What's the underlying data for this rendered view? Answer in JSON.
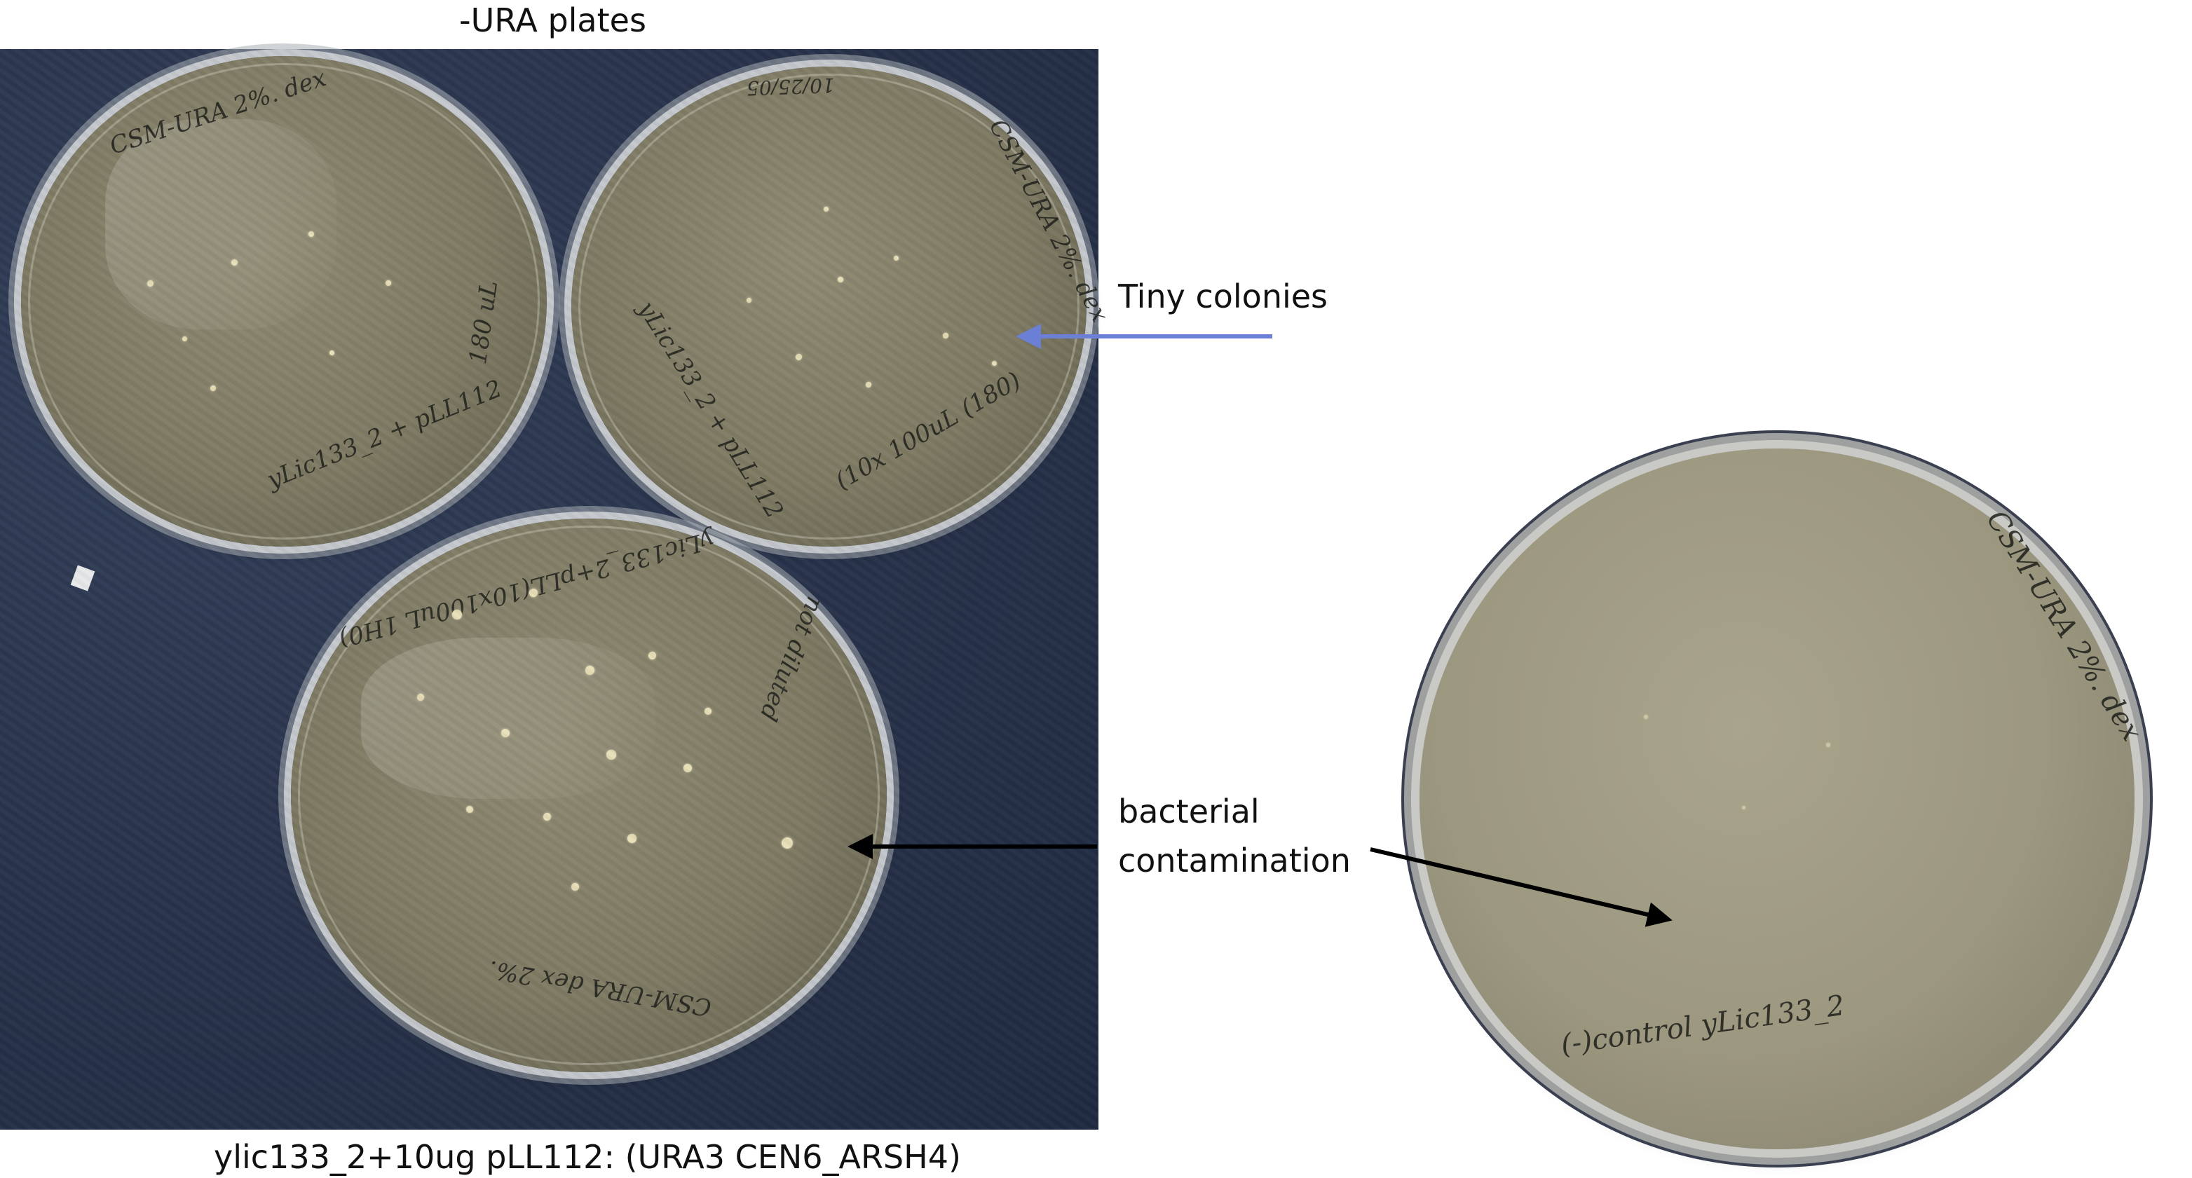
{
  "captions": {
    "top_title": "-URA plates",
    "bottom_caption": "ylic133_2+10ug pLL112: (URA3 CEN6_ARSH4)",
    "tiny_colonies": "Tiny colonies",
    "bacterial_contamination_line1": "bacterial",
    "bacterial_contamination_line2": "contamination"
  },
  "plate_labels": {
    "top_left_plate_rim": "CSM-URA 2%. dex",
    "top_left_plate_volume": "180 uL",
    "top_left_plate_strain": "yLic133_2 + pLL112",
    "top_right_plate_date": "10/25/05",
    "top_right_plate_rim": "CSM-URA 2%. dex",
    "top_right_plate_strain": "yLic133_2 + pLL112",
    "top_right_plate_volume": "(10x 100uL (180)",
    "bottom_plate_label": "yLic133_2+pLL(10x100uL 1H0)",
    "bottom_plate_rim": "CSM-URA dex 2%.",
    "bottom_plate_side": "not diluted",
    "right_plate_rim": "CSM-URA 2%. dex",
    "right_plate_control": "(-)control yLic133_2"
  },
  "colors": {
    "arrow_blue": "#6b7fd7",
    "arrow_black": "#000000",
    "background_dark": "#27324a"
  }
}
